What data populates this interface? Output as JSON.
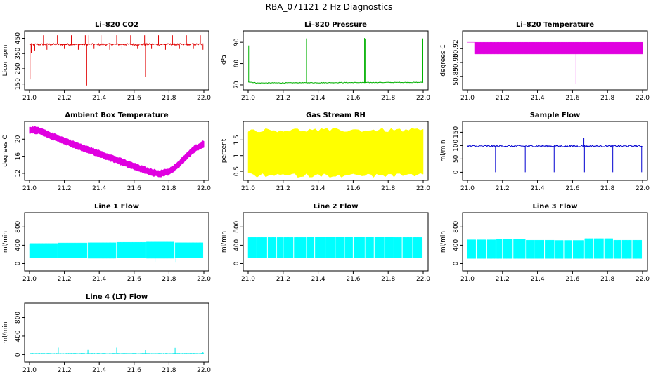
{
  "title": "RBA_071121  2 Hz Diagnostics",
  "chart_data": [
    {
      "type": "line",
      "title": "Li–820 CO2",
      "ylabel": "Licor ppm",
      "color": "#e00000",
      "xlim": [
        21.0,
        22.0
      ],
      "ylim": [
        130,
        480
      ],
      "yticks": [
        150,
        250,
        350,
        450
      ],
      "xticks": [
        "21.0",
        "21.2",
        "21.4",
        "21.6",
        "21.8",
        "22.0"
      ],
      "baseline": 410,
      "noise": 6,
      "trend": [
        [
          21.0,
          410
        ],
        [
          22.0,
          410
        ]
      ],
      "spikes": [
        [
          21.003,
          180
        ],
        [
          21.01,
          355
        ],
        [
          21.03,
          370
        ],
        [
          21.08,
          470
        ],
        [
          21.1,
          375
        ],
        [
          21.16,
          470
        ],
        [
          21.2,
          380
        ],
        [
          21.24,
          470
        ],
        [
          21.28,
          375
        ],
        [
          21.32,
          470
        ],
        [
          21.328,
          140
        ],
        [
          21.34,
          470
        ],
        [
          21.37,
          380
        ],
        [
          21.41,
          470
        ],
        [
          21.46,
          375
        ],
        [
          21.5,
          470
        ],
        [
          21.53,
          380
        ],
        [
          21.58,
          470
        ],
        [
          21.62,
          380
        ],
        [
          21.66,
          470
        ],
        [
          21.665,
          195
        ],
        [
          21.7,
          380
        ],
        [
          21.74,
          470
        ],
        [
          21.78,
          375
        ],
        [
          21.82,
          470
        ],
        [
          21.86,
          380
        ],
        [
          21.9,
          470
        ],
        [
          21.94,
          380
        ],
        [
          21.98,
          470
        ],
        [
          21.995,
          375
        ]
      ]
    },
    {
      "type": "line",
      "title": "Li–820 Pressure",
      "ylabel": "kPa",
      "color": "#00b000",
      "xlim": [
        21.0,
        22.0
      ],
      "ylim": [
        69,
        94
      ],
      "yticks": [
        70,
        80,
        90
      ],
      "yticklabels": [
        "70",
        "80",
        "90"
      ],
      "xticks": [
        "21.0",
        "21.2",
        "21.4",
        "21.6",
        "21.8",
        "22.0"
      ],
      "baseline": 71,
      "noise": 0.15,
      "trend": [
        [
          21.0,
          71.5
        ],
        [
          21.05,
          70.9
        ],
        [
          21.6,
          71.1
        ],
        [
          22.0,
          71.2
        ]
      ],
      "spikes": [
        [
          21.003,
          88.5
        ],
        [
          21.333,
          91.8
        ],
        [
          21.665,
          92
        ],
        [
          21.668,
          91.5
        ],
        [
          21.998,
          91.8
        ]
      ]
    },
    {
      "type": "band",
      "title": "Li–820 Temperature",
      "ylabel": "degrees C",
      "color": "#e000e0",
      "xlim": [
        21.0,
        22.0
      ],
      "ylim": [
        50.88,
        50.93
      ],
      "yticks": [
        50.89,
        50.903,
        50.916
      ],
      "yticklabels": [
        "50.89",
        "50.90",
        "50.92"
      ],
      "xticks": [
        "21.0",
        "21.2",
        "21.4",
        "21.6",
        "21.8",
        "22.0"
      ],
      "segments": [
        [
          21.0,
          21.04,
          50.922,
          50.922
        ],
        [
          21.04,
          21.2,
          50.911,
          50.922
        ],
        [
          21.2,
          22.0,
          50.911,
          50.922
        ]
      ],
      "spikes": [
        [
          21.62,
          50.883
        ]
      ]
    },
    {
      "type": "band",
      "title": "Ambient Box Temperature",
      "ylabel": "degrees C",
      "color": "#e000e0",
      "xlim": [
        21.0,
        22.0
      ],
      "ylim": [
        11,
        23.5
      ],
      "yticks": [
        12,
        16,
        20
      ],
      "yticklabels": [
        "12",
        "16",
        "20"
      ],
      "xticks": [
        "21.0",
        "21.2",
        "21.4",
        "21.6",
        "21.8",
        "22.0"
      ],
      "curve": [
        [
          21.0,
          22.2
        ],
        [
          21.05,
          22.0
        ],
        [
          21.1,
          21.2
        ],
        [
          21.2,
          19.6
        ],
        [
          21.3,
          18.0
        ],
        [
          21.4,
          16.6
        ],
        [
          21.5,
          15.1
        ],
        [
          21.6,
          13.6
        ],
        [
          21.7,
          12.2
        ],
        [
          21.75,
          11.9
        ],
        [
          21.8,
          12.4
        ],
        [
          21.85,
          13.8
        ],
        [
          21.9,
          16.0
        ],
        [
          21.95,
          17.8
        ],
        [
          22.0,
          18.9
        ]
      ],
      "halfwidth": 0.7
    },
    {
      "type": "band",
      "title": "Gas Stream RH",
      "ylabel": "percent",
      "color": "#ffff00",
      "xlim": [
        21.0,
        22.0
      ],
      "ylim": [
        0.3,
        2.0
      ],
      "yticks": [
        0.5,
        1.0,
        1.5
      ],
      "yticklabels": [
        "0.5",
        "1",
        "1.5"
      ],
      "xticks": [
        "21.0",
        "21.2",
        "21.4",
        "21.6",
        "21.8",
        "22.0"
      ],
      "segments": [
        [
          21.0,
          22.0,
          0.4,
          1.78
        ]
      ],
      "jitter": 0.08
    },
    {
      "type": "line",
      "title": "Sample Flow",
      "ylabel": "ml/min",
      "color": "#0000d0",
      "xlim": [
        21.0,
        22.0
      ],
      "ylim": [
        -20,
        180
      ],
      "yticks": [
        0,
        50,
        100,
        150
      ],
      "yticklabels": [
        "0",
        "50",
        "100",
        "150"
      ],
      "xticks": [
        "21.0",
        "21.2",
        "21.4",
        "21.6",
        "21.8",
        "22.0"
      ],
      "baseline": 98,
      "noise": 3,
      "trend": [
        [
          21.0,
          98
        ],
        [
          22.0,
          98
        ]
      ],
      "spikes": [
        [
          21.16,
          0
        ],
        [
          21.33,
          0
        ],
        [
          21.495,
          0
        ],
        [
          21.665,
          130
        ],
        [
          21.668,
          0
        ],
        [
          21.83,
          0
        ],
        [
          21.995,
          0
        ]
      ]
    },
    {
      "type": "band",
      "title": "Line 1 Flow",
      "ylabel": "ml/min",
      "color": "#00ffff",
      "xlim": [
        21.0,
        22.0
      ],
      "ylim": [
        -100,
        1050
      ],
      "yticks": [
        0,
        400,
        800
      ],
      "yticklabels": [
        "0",
        "400",
        "800"
      ],
      "xticks": [
        "21.0",
        "21.2",
        "21.4",
        "21.6",
        "21.8",
        "22.0"
      ],
      "segments": [
        [
          21.0,
          21.16,
          120,
          440
        ],
        [
          21.165,
          21.33,
          120,
          450
        ],
        [
          21.335,
          21.495,
          115,
          455
        ],
        [
          21.5,
          21.665,
          120,
          465
        ],
        [
          21.67,
          21.83,
          115,
          470
        ],
        [
          21.835,
          21.995,
          120,
          455
        ]
      ],
      "dips": [
        [
          21.72,
          40
        ],
        [
          21.84,
          20
        ]
      ]
    },
    {
      "type": "band",
      "title": "Line 2 Flow",
      "ylabel": "ml/min",
      "color": "#00ffff",
      "xlim": [
        21.0,
        22.0
      ],
      "ylim": [
        -100,
        1050
      ],
      "yticks": [
        0,
        400,
        800
      ],
      "yticklabels": [
        "0",
        "400",
        "800"
      ],
      "xticks": [
        "21.0",
        "21.2",
        "21.4",
        "21.6",
        "21.8",
        "22.0"
      ],
      "segments": [
        [
          21.0,
          21.16,
          120,
          570
        ],
        [
          21.165,
          21.33,
          120,
          570
        ],
        [
          21.335,
          21.495,
          120,
          575
        ],
        [
          21.5,
          21.665,
          120,
          580
        ],
        [
          21.67,
          21.83,
          120,
          580
        ],
        [
          21.835,
          21.995,
          120,
          570
        ]
      ],
      "gaps": [
        21.05,
        21.11,
        21.2,
        21.26,
        21.38,
        21.44,
        21.55,
        21.6,
        21.72,
        21.78,
        21.88,
        21.94
      ]
    },
    {
      "type": "band",
      "title": "Line 3 Flow",
      "ylabel": "ml/min",
      "color": "#00ffff",
      "xlim": [
        21.0,
        22.0
      ],
      "ylim": [
        -100,
        1050
      ],
      "yticks": [
        0,
        400,
        800
      ],
      "yticklabels": [
        "0",
        "400",
        "800"
      ],
      "xticks": [
        "21.0",
        "21.2",
        "21.4",
        "21.6",
        "21.8",
        "22.0"
      ],
      "segments": [
        [
          21.0,
          21.16,
          110,
          520
        ],
        [
          21.165,
          21.33,
          110,
          540
        ],
        [
          21.335,
          21.495,
          110,
          510
        ],
        [
          21.5,
          21.665,
          110,
          505
        ],
        [
          21.67,
          21.83,
          110,
          545
        ],
        [
          21.835,
          21.995,
          110,
          510
        ]
      ],
      "gaps": [
        21.05,
        21.11,
        21.2,
        21.26,
        21.38,
        21.44,
        21.55,
        21.6,
        21.72,
        21.78,
        21.88,
        21.94
      ]
    },
    {
      "type": "line",
      "title": "Line 4 (LT) Flow",
      "ylabel": "ml/min",
      "color": "#00e8e8",
      "xlim": [
        21.0,
        22.0
      ],
      "ylim": [
        -100,
        1050
      ],
      "yticks": [
        0,
        400,
        800
      ],
      "yticklabels": [
        "0",
        "400",
        "800"
      ],
      "xticks": [
        "21.0",
        "21.2",
        "21.4",
        "21.6",
        "21.8",
        "22.0"
      ],
      "baseline": 22,
      "noise": 4,
      "trend": [
        [
          21.0,
          22
        ],
        [
          22.0,
          22
        ]
      ],
      "spikes": [
        [
          21.165,
          150
        ],
        [
          21.335,
          115
        ],
        [
          21.5,
          150
        ],
        [
          21.665,
          100
        ],
        [
          21.835,
          145
        ],
        [
          21.995,
          65
        ]
      ]
    }
  ]
}
